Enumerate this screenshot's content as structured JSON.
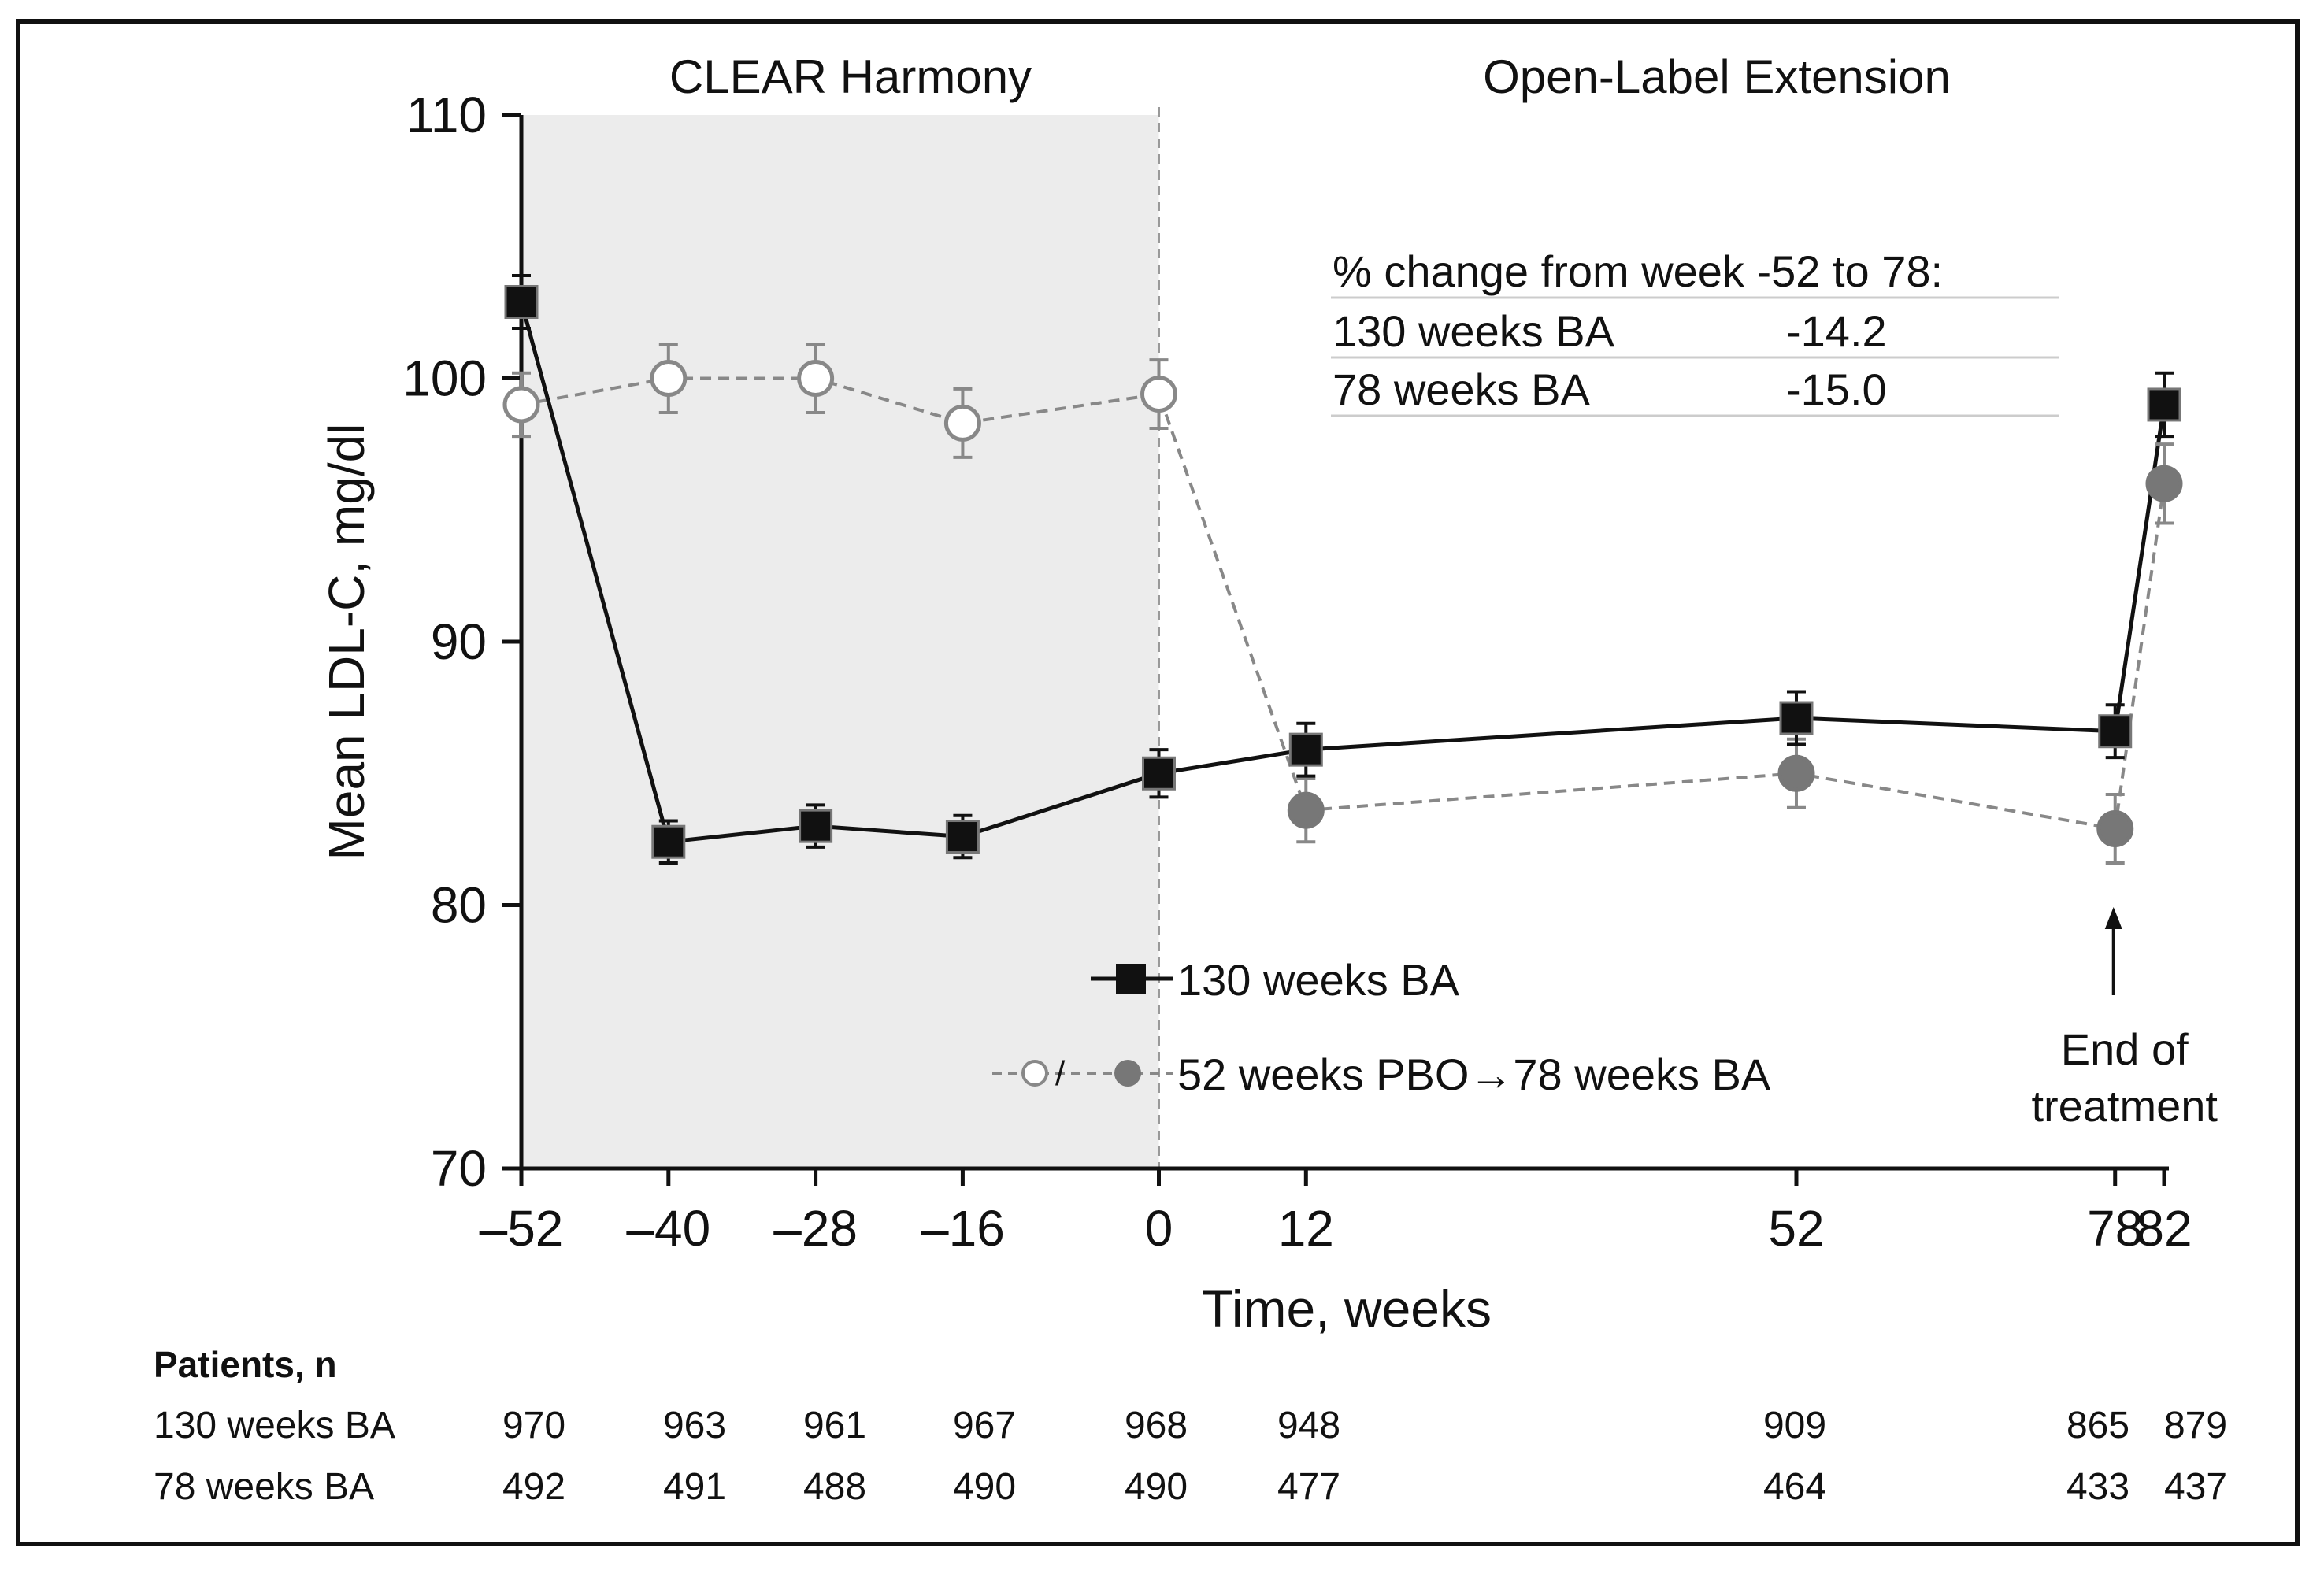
{
  "chart_data": {
    "type": "line",
    "ylabel": "Mean LDL-C, mg/dl",
    "xlabel": "Time, weeks",
    "ylim": [
      70,
      110
    ],
    "yticks": [
      70,
      80,
      90,
      100,
      110
    ],
    "ytick_labels": [
      "70",
      "80",
      "90",
      "100",
      "110"
    ],
    "x_positions": [
      -52,
      -40,
      -28,
      -16,
      0,
      12,
      52,
      78,
      82
    ],
    "xtick_labels": [
      "–52",
      "–40",
      "–28",
      "–16",
      "0",
      "12",
      "52",
      "78",
      "82"
    ],
    "periods": [
      {
        "label": "CLEAR Harmony",
        "from": -52,
        "to": 0,
        "shaded": true
      },
      {
        "label": "Open-Label Extension",
        "from": 0,
        "to": 82,
        "shaded": false
      }
    ],
    "series": [
      {
        "name": "130 weeks BA",
        "legend_label": "130 weeks BA",
        "marker": "square-filled",
        "line_style": "solid",
        "color": "#111111",
        "points": [
          {
            "x": -52,
            "y": 102.9,
            "err": 1.0
          },
          {
            "x": -40,
            "y": 82.4,
            "err": 0.8
          },
          {
            "x": -28,
            "y": 83.0,
            "err": 0.8
          },
          {
            "x": -16,
            "y": 82.6,
            "err": 0.8
          },
          {
            "x": 0,
            "y": 85.0,
            "err": 0.9
          },
          {
            "x": 12,
            "y": 85.9,
            "err": 1.0
          },
          {
            "x": 52,
            "y": 87.1,
            "err": 1.0
          },
          {
            "x": 78,
            "y": 86.6,
            "err": 1.0
          },
          {
            "x": 82,
            "y": 99.0,
            "err": 1.2
          }
        ]
      },
      {
        "name": "52 weeks PBO→78 weeks BA",
        "legend_label": "52 weeks PBO→78 weeks BA",
        "marker": "circle-open-then-filled",
        "line_style": "dashed",
        "color": "#777777",
        "points": [
          {
            "x": -52,
            "y": 99.0,
            "err": 1.2
          },
          {
            "x": -40,
            "y": 100.0,
            "err": 1.3
          },
          {
            "x": -28,
            "y": 100.0,
            "err": 1.3
          },
          {
            "x": -16,
            "y": 98.3,
            "err": 1.3
          },
          {
            "x": 0,
            "y": 99.4,
            "err": 1.3
          },
          {
            "x": 12,
            "y": 83.6,
            "err": 1.2
          },
          {
            "x": 52,
            "y": 85.0,
            "err": 1.3
          },
          {
            "x": 78,
            "y": 82.9,
            "err": 1.3
          },
          {
            "x": 82,
            "y": 96.0,
            "err": 1.5
          }
        ]
      }
    ],
    "annotation": {
      "text_line1": "End of",
      "text_line2": "treatment",
      "x": 78
    }
  },
  "inset_table": {
    "title": "% change from week -52 to 78:",
    "rows": [
      {
        "label": "130 weeks BA",
        "value": "-14.2"
      },
      {
        "label": "78 weeks BA",
        "value": "-15.0"
      }
    ]
  },
  "patients_table": {
    "title": "Patients, n",
    "rows": [
      {
        "label": "130 weeks BA",
        "values": [
          "970",
          "963",
          "961",
          "967",
          "968",
          "948",
          "909",
          "865",
          "879"
        ]
      },
      {
        "label": "78 weeks BA",
        "values": [
          "492",
          "491",
          "488",
          "490",
          "490",
          "477",
          "464",
          "433",
          "437"
        ]
      }
    ]
  },
  "colors": {
    "shade": "#ececec",
    "series1": "#111111",
    "series2_line": "#888888",
    "series2_filled": "#777777"
  }
}
